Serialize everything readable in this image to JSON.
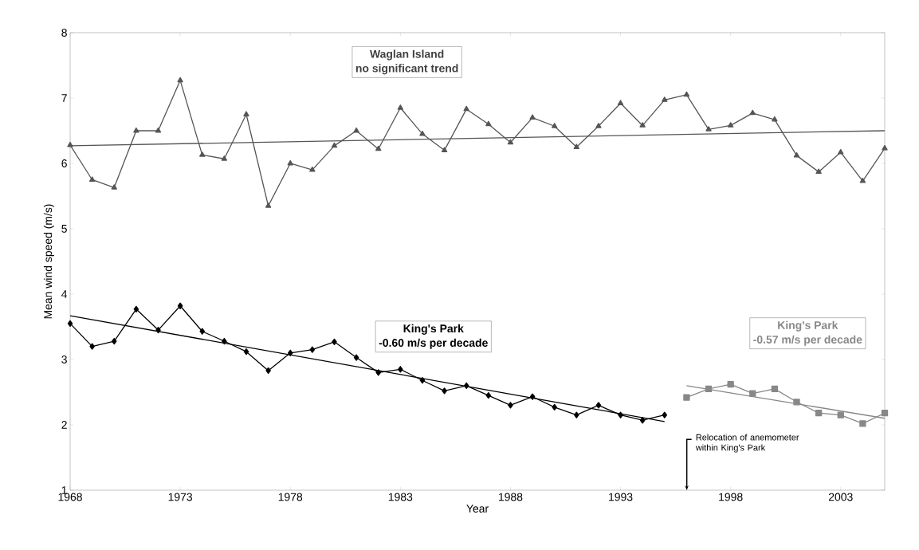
{
  "chart_data": {
    "type": "line",
    "xlabel": "Year",
    "ylabel": "Mean wind speed (m/s)",
    "xlim": [
      1968,
      2005
    ],
    "ylim": [
      1,
      8
    ],
    "xticks": [
      1968,
      1973,
      1978,
      1983,
      1988,
      1993,
      1998,
      2003
    ],
    "yticks": [
      1,
      2,
      3,
      4,
      5,
      6,
      7,
      8
    ],
    "grid": false,
    "series": [
      {
        "color": "#555555",
        "marker": "triangle",
        "x": [
          1968,
          1969,
          1970,
          1971,
          1972,
          1973,
          1974,
          1975,
          1976,
          1977,
          1978,
          1979,
          1980,
          1981,
          1982,
          1983,
          1984,
          1985,
          1986,
          1987,
          1988,
          1989,
          1990,
          1991,
          1992,
          1993,
          1994,
          1995,
          1996,
          1997,
          1998,
          1999,
          2000,
          2001,
          2002,
          2003,
          2004,
          2005
        ],
        "values": [
          6.28,
          5.75,
          5.63,
          6.5,
          6.5,
          7.27,
          6.13,
          6.07,
          6.75,
          5.35,
          6.0,
          5.9,
          6.27,
          6.5,
          6.22,
          6.85,
          6.45,
          6.2,
          6.83,
          6.6,
          6.32,
          6.7,
          6.57,
          6.25,
          6.57,
          6.92,
          6.58,
          6.97,
          7.05,
          6.52,
          6.58,
          6.77,
          6.67,
          6.12,
          5.87,
          6.17,
          5.73,
          6.23
        ]
      },
      {
        "color": "#555555",
        "marker": "none",
        "x": [
          1968,
          2005
        ],
        "values": [
          6.27,
          6.5
        ]
      },
      {
        "color": "#000000",
        "marker": "diamond",
        "x": [
          1968,
          1969,
          1970,
          1971,
          1972,
          1973,
          1974,
          1975,
          1976,
          1977,
          1978,
          1979,
          1980,
          1981,
          1982,
          1983,
          1984,
          1985,
          1986,
          1987,
          1988,
          1989,
          1990,
          1991,
          1992,
          1993,
          1994,
          1995
        ],
        "values": [
          3.55,
          3.2,
          3.28,
          3.77,
          3.45,
          3.82,
          3.43,
          3.28,
          3.12,
          2.83,
          3.1,
          3.15,
          3.27,
          3.03,
          2.8,
          2.85,
          2.68,
          2.52,
          2.6,
          2.45,
          2.3,
          2.43,
          2.27,
          2.15,
          2.3,
          2.15,
          2.07,
          2.15
        ]
      },
      {
        "color": "#000000",
        "marker": "none",
        "x": [
          1968,
          1995
        ],
        "values": [
          3.67,
          2.05
        ]
      },
      {
        "color": "#888888",
        "marker": "square",
        "x": [
          1996,
          1997,
          1998,
          1999,
          2000,
          2001,
          2002,
          2003,
          2004,
          2005
        ],
        "values": [
          2.42,
          2.55,
          2.62,
          2.48,
          2.55,
          2.35,
          2.18,
          2.15,
          2.02,
          2.18
        ]
      },
      {
        "color": "#888888",
        "marker": "none",
        "x": [
          1996,
          2005
        ],
        "values": [
          2.6,
          2.1
        ]
      }
    ],
    "annotations": [
      "Waglan Island",
      "no significant trend",
      "King's Park",
      "-0.60 m/s per decade",
      "King's Park",
      "-0.57 m/s per decade",
      "Relocation of anemometer within King's Park"
    ]
  }
}
